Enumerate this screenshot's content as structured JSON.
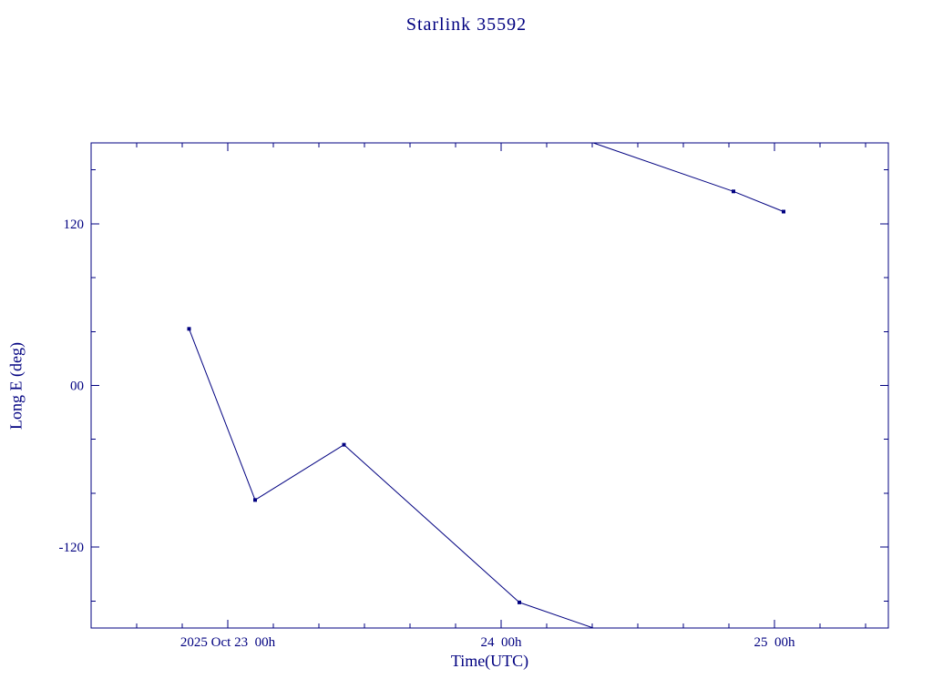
{
  "page": {
    "background": "#ffffff",
    "accent": "#000080"
  },
  "chart_data": {
    "type": "line",
    "title": "Starlink 35592",
    "xlabel": "Time(UTC)",
    "ylabel": "Long E (deg)",
    "line_color": "#000080",
    "marker": "square",
    "grid": false,
    "legend": "none",
    "ylim": [
      -180,
      180
    ],
    "x_axis": {
      "unit": "hours since 2025 Oct 23 00h UTC",
      "range": [
        -12,
        58
      ],
      "minor_tick_step": 4,
      "major_ticks": [
        {
          "value": 0,
          "label": "2025 Oct 23  00h"
        },
        {
          "value": 24,
          "label": "24  00h"
        },
        {
          "value": 48,
          "label": "25  00h"
        }
      ]
    },
    "y_axis": {
      "unit": "deg",
      "range": [
        -180,
        180
      ],
      "minor_tick_step": 40,
      "major_ticks": [
        {
          "value": 120,
          "label": "120"
        },
        {
          "value": 0,
          "label": "00"
        },
        {
          "value": -120,
          "label": "-120"
        }
      ]
    },
    "series": [
      {
        "name": "Long E",
        "wrap_at": 180,
        "points": [
          {
            "t_hours": -3.4,
            "lon_deg": 42
          },
          {
            "t_hours": 2.4,
            "lon_deg": -85
          },
          {
            "t_hours": 10.2,
            "lon_deg": -44
          },
          {
            "t_hours": 25.6,
            "lon_deg": -161
          },
          {
            "t_hours": 44.4,
            "lon_deg": 144
          },
          {
            "t_hours": 48.8,
            "lon_deg": 129
          }
        ]
      }
    ]
  }
}
